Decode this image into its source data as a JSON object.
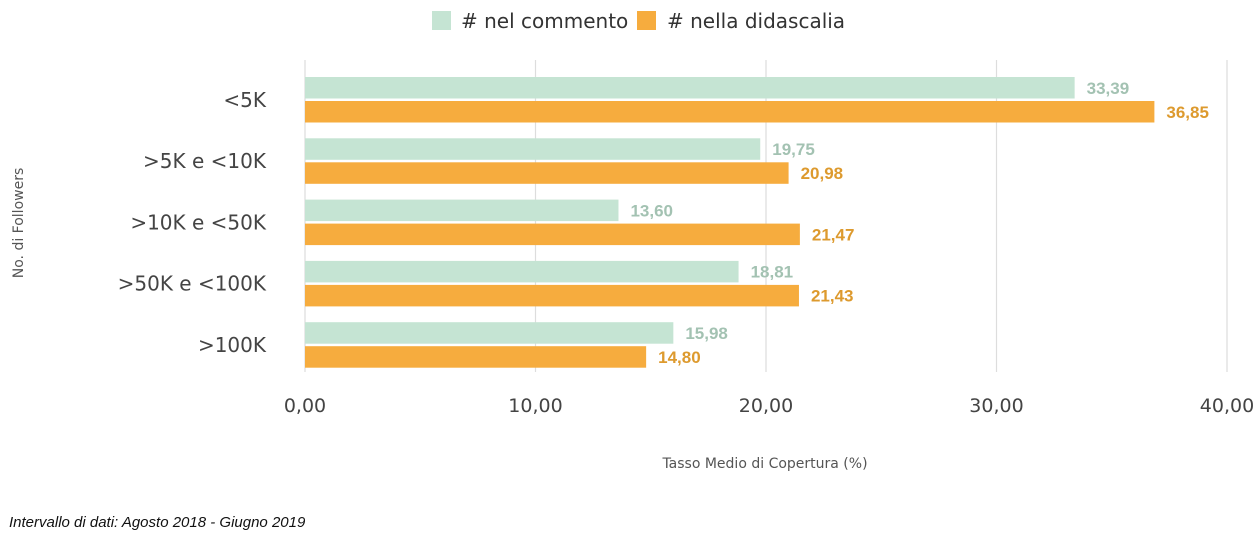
{
  "chart_data": {
    "type": "bar",
    "orientation": "horizontal",
    "categories": [
      ">100K",
      ">50K e  <100K",
      ">10K e <50K",
      ">5K e <10K",
      "<5K"
    ],
    "series": [
      {
        "name": "# nel commento",
        "values": [
          15.98,
          18.81,
          13.6,
          19.75,
          33.39
        ],
        "labels": [
          "15,98",
          "18,81",
          "13,60",
          "19,75",
          "33,39"
        ],
        "color": "#c5e4d3",
        "label_color": "#a3c2b2"
      },
      {
        "name": "# nella didascalia",
        "values": [
          14.8,
          21.43,
          21.47,
          20.98,
          36.85
        ],
        "labels": [
          "14,80",
          "21,43",
          "21,47",
          "20,98",
          "36,85"
        ],
        "color": "#f6ac3e",
        "label_color": "#dd9a2e"
      }
    ],
    "xlabel": "Tasso Medio di Copertura (%)",
    "ylabel": "No. di Followers",
    "xlim": [
      0,
      40
    ],
    "xticks": [
      0,
      10,
      20,
      30,
      40
    ],
    "xtick_labels": [
      "0,00",
      "10,00",
      "20,00",
      "30,00",
      "40,00"
    ],
    "grid": "vertical",
    "legend_position": "top-center"
  },
  "footnote": "Intervallo di dati: Agosto 2018 - Giugno 2019"
}
